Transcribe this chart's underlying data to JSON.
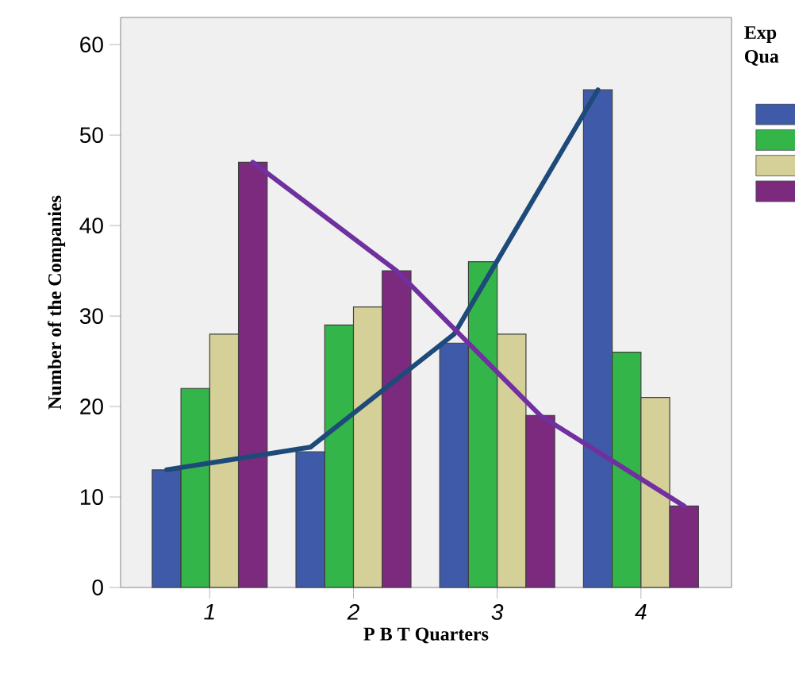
{
  "chart_data": {
    "type": "bar",
    "xlabel": "P B T Quarters",
    "ylabel": "Number of the Companies",
    "legend_title": "Exp Qua",
    "categories": [
      "1",
      "2",
      "3",
      "4"
    ],
    "series": [
      {
        "color": "#3f5aa8",
        "values": [
          13,
          15,
          27,
          55
        ]
      },
      {
        "color": "#33b54a",
        "values": [
          22,
          29,
          36,
          26
        ]
      },
      {
        "color": "#d5cf98",
        "values": [
          28,
          31,
          28,
          21
        ]
      },
      {
        "color": "#7b2a7e",
        "values": [
          47,
          35,
          19,
          9
        ]
      },
      {
        "type": "line",
        "color": "#1e4a7a",
        "values": [
          13,
          15.5,
          28,
          55
        ]
      },
      {
        "type": "line",
        "color": "#7030a0",
        "values": [
          47,
          35,
          19,
          9
        ]
      }
    ],
    "ylim": [
      0,
      63
    ],
    "yticks": [
      0,
      10,
      20,
      30,
      40,
      50,
      60
    ],
    "grid": false
  }
}
